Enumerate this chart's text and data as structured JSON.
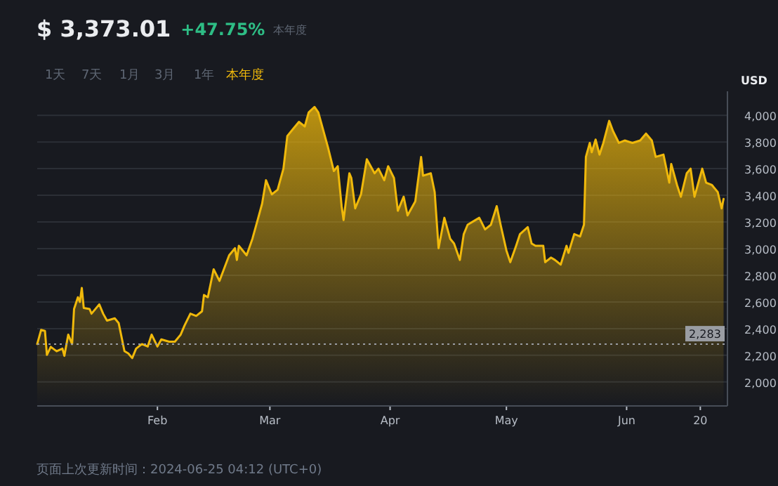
{
  "chart_data": {
    "type": "area",
    "title": "$ 3,373.01",
    "subtitle": "+47.75%",
    "ylabel": "USD",
    "annotations": [
      "本年度",
      "1天",
      "7天",
      "1月",
      "3月",
      "1年",
      "本年度",
      "页面上次更新时间：2024-06-25 04:12 (UTC+0)"
    ],
    "x": [
      "2024-01-01",
      "2024-01-02",
      "2024-01-03",
      "2024-01-03T12:00",
      "2024-01-04T12:00",
      "2024-01-06",
      "2024-01-07T12:00",
      "2024-01-08",
      "2024-01-09",
      "2024-01-10",
      "2024-01-10T12:00",
      "2024-01-11T12:00",
      "2024-01-12",
      "2024-01-12T12:00",
      "2024-01-13",
      "2024-01-14T12:00",
      "2024-01-15",
      "2024-01-17",
      "2024-01-18",
      "2024-01-19",
      "2024-01-21",
      "2024-01-22",
      "2024-01-23T12:00",
      "2024-01-24T12:00",
      "2024-01-25T12:00",
      "2024-01-26T12:00",
      "2024-01-28",
      "2024-01-29T12:00",
      "2024-01-30T12:00",
      "2024-02-01",
      "2024-02-02",
      "2024-02-04",
      "2024-02-05T12:00",
      "2024-02-07",
      "2024-02-08",
      "2024-02-09T12:00",
      "2024-02-11",
      "2024-02-12T12:00",
      "2024-02-13",
      "2024-02-14",
      "2024-02-15T12:00",
      "2024-02-17",
      "2024-02-19T12:00",
      "2024-02-21",
      "2024-02-21T12:00",
      "2024-02-22",
      "2024-02-24",
      "2024-02-25T12:00",
      "2024-02-27",
      "2024-02-28",
      "2024-02-29",
      "2024-03-01T12:00",
      "2024-03-03",
      "2024-03-04T12:00",
      "2024-03-05T12:00",
      "2024-03-07",
      "2024-03-08T12:00",
      "2024-03-10",
      "2024-03-11",
      "2024-03-12T12:00",
      "2024-03-13T12:00",
      "2024-03-14T12:00",
      "2024-03-16",
      "2024-03-17T12:00",
      "2024-03-18T12:00",
      "2024-03-19T12:00",
      "2024-03-20",
      "2024-03-21T12:00",
      "2024-03-22",
      "2024-03-23",
      "2024-03-24T12:00",
      "2024-03-26",
      "2024-03-28",
      "2024-03-29",
      "2024-03-30T12:00",
      "2024-03-31T12:00",
      "2024-04-02",
      "2024-04-03",
      "2024-04-04T12:00",
      "2024-04-05T12:00",
      "2024-04-07T12:00",
      "2024-04-09",
      "2024-04-09T12:00",
      "2024-04-11T12:00",
      "2024-04-12T12:00",
      "2024-04-13T12:00",
      "2024-04-15",
      "2024-04-16T12:00",
      "2024-04-17T12:00",
      "2024-04-19",
      "2024-04-20",
      "2024-04-21",
      "2024-04-23",
      "2024-04-24",
      "2024-04-25T12:00",
      "2024-04-27",
      "2024-04-28T12:00",
      "2024-04-29T12:00",
      "2024-05-01",
      "2024-05-02",
      "2024-05-03T12:00",
      "2024-05-04T12:00",
      "2024-05-06T12:00",
      "2024-05-07T12:00",
      "2024-05-08T12:00",
      "2024-05-10T12:00",
      "2024-05-11",
      "2024-05-12T12:00",
      "2024-05-13T12:00",
      "2024-05-15",
      "2024-05-16T12:00",
      "2024-05-17",
      "2024-05-18T12:00",
      "2024-05-20",
      "2024-05-21",
      "2024-05-21T12:00",
      "2024-05-22T12:00",
      "2024-05-23",
      "2024-05-24",
      "2024-05-25",
      "2024-05-26",
      "2024-05-27T12:00",
      "2024-05-28T12:00",
      "2024-05-30",
      "2024-05-31T12:00",
      "2024-06-02T12:00",
      "2024-06-04T12:00",
      "2024-06-06",
      "2024-06-07T12:00",
      "2024-06-08T12:00",
      "2024-06-10T12:00",
      "2024-06-12",
      "2024-06-12T12:00",
      "2024-06-14",
      "2024-06-15",
      "2024-06-16T12:00",
      "2024-06-17T12:00",
      "2024-06-18T12:00",
      "2024-06-20T12:00",
      "2024-06-21T12:00",
      "2024-06-23",
      "2024-06-24T12:00",
      "2024-06-25T12:00",
      "2024-06-26"
    ],
    "series": [
      {
        "color": "#f0b90b",
        "values": [
          2284,
          2390,
          2382,
          2203,
          2263,
          2230,
          2250,
          2196,
          2355,
          2284,
          2547,
          2635,
          2600,
          2705,
          2555,
          2547,
          2512,
          2582,
          2512,
          2460,
          2477,
          2442,
          2231,
          2214,
          2179,
          2250,
          2284,
          2266,
          2355,
          2266,
          2319,
          2302,
          2302,
          2355,
          2424,
          2512,
          2495,
          2530,
          2652,
          2635,
          2845,
          2758,
          2950,
          3003,
          2915,
          3021,
          2950,
          3074,
          3231,
          3337,
          3513,
          3407,
          3442,
          3600,
          3845,
          3898,
          3951,
          3916,
          4021,
          4063,
          4021,
          3916,
          3758,
          3582,
          3618,
          3319,
          3214,
          3565,
          3530,
          3302,
          3407,
          3670,
          3565,
          3600,
          3513,
          3618,
          3530,
          3284,
          3389,
          3249,
          3354,
          3688,
          3547,
          3565,
          3424,
          3003,
          3231,
          3074,
          3038,
          2915,
          3109,
          3179,
          3214,
          3231,
          3144,
          3179,
          3319,
          3179,
          2986,
          2898,
          3021,
          3109,
          3161,
          3038,
          3021,
          3021,
          2898,
          2933,
          2915,
          2880,
          3021,
          2968,
          3109,
          3091,
          3179,
          3688,
          3793,
          3723,
          3818,
          3705,
          3793,
          3958,
          3881,
          3793,
          3811,
          3793,
          3811,
          3863,
          3811,
          3688,
          3705,
          3495,
          3635,
          3477,
          3389,
          3565,
          3600,
          3389,
          3600,
          3495,
          3477,
          3424,
          3302,
          3373
        ]
      }
    ],
    "xlim": [
      "2024-01-01",
      "2024-06-27"
    ],
    "xticks": [
      {
        "value": "2024-02-01",
        "label": "Feb"
      },
      {
        "value": "2024-03-01",
        "label": "Mar"
      },
      {
        "value": "2024-04-01",
        "label": "Apr"
      },
      {
        "value": "2024-05-01",
        "label": "May"
      },
      {
        "value": "2024-06-01",
        "label": "Jun"
      },
      {
        "value": "2024-06-20",
        "label": "20"
      }
    ],
    "ylim": [
      1820,
      4180
    ],
    "yticks": [
      {
        "value": 2000,
        "label": "2,000"
      },
      {
        "value": 2200,
        "label": "2,200"
      },
      {
        "value": 2400,
        "label": "2,400"
      },
      {
        "value": 2600,
        "label": "2,600"
      },
      {
        "value": 2800,
        "label": "2,800"
      },
      {
        "value": 3000,
        "label": "3,000"
      },
      {
        "value": 3200,
        "label": "3,200"
      },
      {
        "value": 3400,
        "label": "3,400"
      },
      {
        "value": 3600,
        "label": "3,600"
      },
      {
        "value": 3800,
        "label": "3,800"
      },
      {
        "value": 4000,
        "label": "4,000"
      }
    ],
    "ref_lines": [
      {
        "axis": "y",
        "value": 2283,
        "label": "2,283",
        "color": "#9a9da3",
        "line_style": "dotted"
      }
    ],
    "grid": "y",
    "marker": "none",
    "line_style": "solid"
  }
}
